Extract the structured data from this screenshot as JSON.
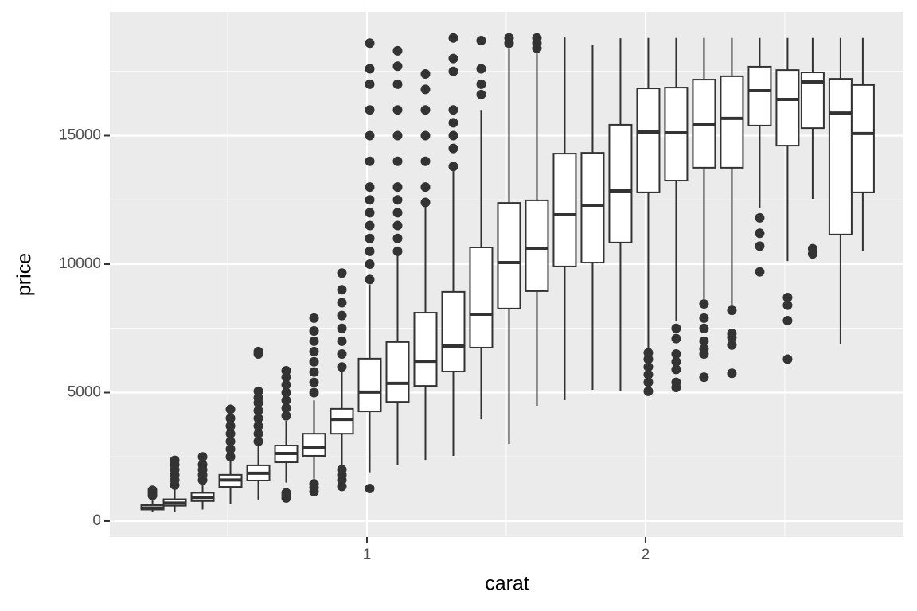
{
  "chart_data": {
    "type": "box",
    "x_label": "carat",
    "y_label": "price",
    "xlim": [
      0.077,
      2.926
    ],
    "ylim": [
      -619,
      19814
    ],
    "xticks": [
      1,
      2
    ],
    "yticks": [
      0,
      5000,
      10000,
      15000
    ],
    "x_minor_grid": [
      0.5,
      1.5,
      2.5
    ],
    "y_minor_grid": [
      2500,
      7500,
      12500,
      17500
    ],
    "grid": true,
    "color": "#333333",
    "boxes": [
      {
        "x": 0.23,
        "low": 340,
        "q1": 450,
        "median": 510,
        "q3": 620,
        "high": 900,
        "outliers": [
          1000,
          1100,
          1200
        ]
      },
      {
        "x": 0.31,
        "low": 370,
        "q1": 600,
        "median": 700,
        "q3": 850,
        "high": 1250,
        "outliers": [
          1400,
          1600,
          1800,
          2000,
          2200,
          2366
        ]
      },
      {
        "x": 0.41,
        "low": 450,
        "q1": 780,
        "median": 920,
        "q3": 1100,
        "high": 1500,
        "outliers": [
          1600,
          1800,
          2000,
          2200,
          2500
        ]
      },
      {
        "x": 0.51,
        "low": 650,
        "q1": 1330,
        "median": 1600,
        "q3": 1800,
        "high": 2400,
        "outliers": [
          2500,
          2800,
          3100,
          3400,
          3700,
          4000,
          4350
        ]
      },
      {
        "x": 0.61,
        "low": 840,
        "q1": 1580,
        "median": 1860,
        "q3": 2170,
        "high": 3000,
        "outliers": [
          3100,
          3400,
          3700,
          4000,
          4300,
          4600,
          4800,
          5050,
          6500,
          6600
        ]
      },
      {
        "x": 0.71,
        "low": 1500,
        "q1": 2290,
        "median": 2630,
        "q3": 2940,
        "high": 3900,
        "outliers": [
          900,
          1000,
          1100,
          4100,
          4400,
          4700,
          5000,
          5300,
          5600,
          5850
        ]
      },
      {
        "x": 0.81,
        "low": 1650,
        "q1": 2540,
        "median": 2850,
        "q3": 3400,
        "high": 4700,
        "outliers": [
          1150,
          1300,
          1450,
          5000,
          5400,
          5800,
          6200,
          6600,
          7000,
          7400,
          7900
        ]
      },
      {
        "x": 0.91,
        "low": 2100,
        "q1": 3400,
        "median": 3960,
        "q3": 4370,
        "high": 5800,
        "outliers": [
          1350,
          1600,
          1800,
          2000,
          6000,
          6500,
          7000,
          7500,
          8000,
          8500,
          9000,
          9650
        ]
      },
      {
        "x": 1.01,
        "low": 1900,
        "q1": 4270,
        "median": 5020,
        "q3": 6320,
        "high": 9200,
        "outliers": [
          1270,
          9400,
          10000,
          10500,
          11000,
          11500,
          12000,
          12500,
          13000,
          14000,
          15000,
          16000,
          17000,
          17600,
          18600
        ]
      },
      {
        "x": 1.11,
        "low": 2170,
        "q1": 4640,
        "median": 5360,
        "q3": 6970,
        "high": 10370,
        "outliers": [
          10500,
          11000,
          11500,
          12000,
          12500,
          13000,
          14000,
          15000,
          16000,
          17000,
          17700,
          18300
        ]
      },
      {
        "x": 1.21,
        "low": 2380,
        "q1": 5260,
        "median": 6220,
        "q3": 8110,
        "high": 12230,
        "outliers": [
          12400,
          13000,
          14000,
          15000,
          16000,
          16800,
          17400
        ]
      },
      {
        "x": 1.31,
        "low": 2540,
        "q1": 5820,
        "median": 6810,
        "q3": 8920,
        "high": 13620,
        "outliers": [
          13800,
          14500,
          15000,
          15500,
          16000,
          17500,
          18000,
          18800
        ]
      },
      {
        "x": 1.41,
        "low": 3960,
        "q1": 6750,
        "median": 8050,
        "q3": 10650,
        "high": 16000,
        "outliers": [
          16600,
          17000,
          17600,
          18700
        ]
      },
      {
        "x": 1.51,
        "low": 3000,
        "q1": 8270,
        "median": 10060,
        "q3": 12380,
        "high": 18400,
        "outliers": [
          18600,
          18800
        ]
      },
      {
        "x": 1.61,
        "low": 4490,
        "q1": 8950,
        "median": 10620,
        "q3": 12480,
        "high": 18200,
        "outliers": [
          18400,
          18600,
          18800
        ]
      },
      {
        "x": 1.71,
        "low": 4710,
        "q1": 9910,
        "median": 11920,
        "q3": 14300,
        "high": 18820,
        "outliers": []
      },
      {
        "x": 1.81,
        "low": 5110,
        "q1": 10060,
        "median": 12290,
        "q3": 14330,
        "high": 18540,
        "outliers": []
      },
      {
        "x": 1.91,
        "low": 5050,
        "q1": 10840,
        "median": 12850,
        "q3": 15420,
        "high": 18790,
        "outliers": []
      },
      {
        "x": 2.01,
        "low": 6720,
        "q1": 12790,
        "median": 15140,
        "q3": 16840,
        "high": 18800,
        "outliers": [
          5050,
          5400,
          5700,
          6000,
          6300,
          6550
        ]
      },
      {
        "x": 2.11,
        "low": 7800,
        "q1": 13250,
        "median": 15110,
        "q3": 16870,
        "high": 18800,
        "outliers": [
          5200,
          5400,
          5900,
          6200,
          6500,
          7100,
          7500
        ]
      },
      {
        "x": 2.21,
        "low": 8640,
        "q1": 13750,
        "median": 15420,
        "q3": 17180,
        "high": 18800,
        "outliers": [
          5600,
          6500,
          6700,
          7000,
          7500,
          7900,
          8450
        ]
      },
      {
        "x": 2.31,
        "low": 8420,
        "q1": 13750,
        "median": 15670,
        "q3": 17310,
        "high": 18800,
        "outliers": [
          5750,
          6850,
          7150,
          7300,
          8200
        ]
      },
      {
        "x": 2.41,
        "low": 12170,
        "q1": 15390,
        "median": 16750,
        "q3": 17680,
        "high": 18800,
        "outliers": [
          9700,
          10700,
          11200,
          11800
        ]
      },
      {
        "x": 2.51,
        "low": 10120,
        "q1": 14610,
        "median": 16410,
        "q3": 17550,
        "high": 18800,
        "outliers": [
          6300,
          7800,
          8400,
          8700
        ]
      },
      {
        "x": 2.6,
        "low": 12540,
        "q1": 15290,
        "median": 17090,
        "q3": 17460,
        "high": 18800,
        "outliers": [
          10400,
          10600
        ]
      },
      {
        "x": 2.7,
        "low": 6900,
        "q1": 11150,
        "median": 15880,
        "q3": 17210,
        "high": 18800,
        "outliers": []
      },
      {
        "x": 2.78,
        "low": 10500,
        "q1": 12790,
        "median": 15080,
        "q3": 16970,
        "high": 18800,
        "outliers": []
      }
    ]
  }
}
